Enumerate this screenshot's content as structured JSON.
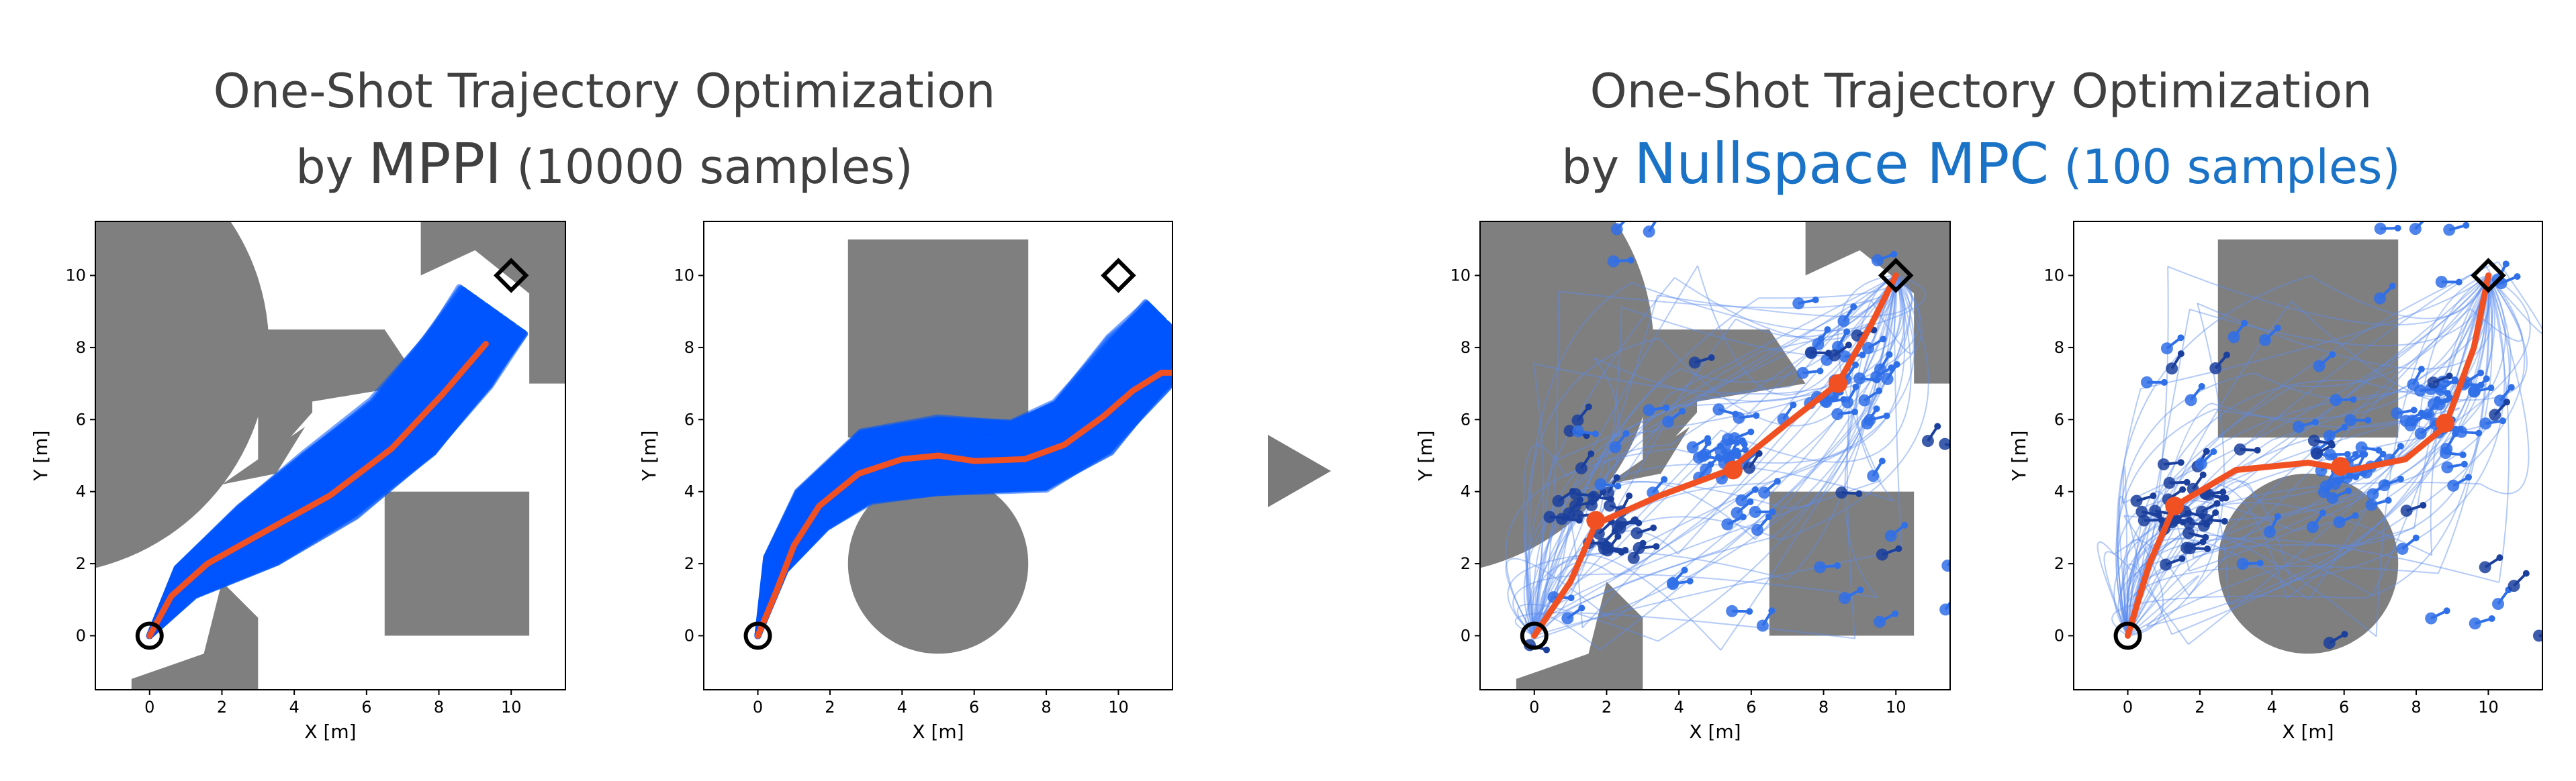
{
  "titles": {
    "left": {
      "line1": "One-Shot Trajectory Optimization",
      "prefix": "by ",
      "method": "MPPI",
      "samples": " (10000 samples)"
    },
    "right": {
      "line1": "One-Shot Trajectory Optimization",
      "prefix": "by ",
      "method": "Nullspace MPC",
      "samples": " (100 samples)"
    }
  },
  "colors": {
    "obstacle": "#7f7f7f",
    "samples": "#0055ff",
    "optimal": "#f05022",
    "nullspace": "#1a73c7",
    "arrow": "#7a7a7a"
  },
  "chart_data": [
    {
      "type": "line",
      "name": "mppi-scene-1",
      "xlabel": "X [m]",
      "ylabel": "Y [m]",
      "xlim": [
        -1.5,
        11.5
      ],
      "ylim": [
        -1.5,
        11.5
      ],
      "xticks": [
        0,
        2,
        4,
        6,
        8,
        10
      ],
      "yticks": [
        0,
        2,
        4,
        6,
        8,
        10
      ],
      "start": [
        0,
        0
      ],
      "goal": [
        10,
        10
      ],
      "obstacles": [
        {
          "kind": "circle",
          "cx": -3,
          "cy": 8,
          "r": 6.3
        },
        {
          "kind": "polygon",
          "points": [
            [
              3,
              8.5
            ],
            [
              6.5,
              8.5
            ],
            [
              7.5,
              7
            ],
            [
              4.5,
              6.5
            ],
            [
              4.5,
              6.2
            ],
            [
              3,
              4.5
            ]
          ]
        },
        {
          "kind": "polygon",
          "points": [
            [
              3.5,
              4.5
            ],
            [
              4.3,
              5.8
            ],
            [
              2,
              4.2
            ]
          ]
        },
        {
          "kind": "rect",
          "x0": 6.5,
          "y0": 0,
          "x1": 10.5,
          "y1": 4
        },
        {
          "kind": "polygon",
          "points": [
            [
              -0.5,
              -1.2
            ],
            [
              1.5,
              -0.5
            ],
            [
              2,
              1.5
            ],
            [
              3,
              0.5
            ],
            [
              3,
              -1.5
            ],
            [
              -0.5,
              -1.5
            ]
          ]
        },
        {
          "kind": "polygon",
          "points": [
            [
              7.5,
              11.5
            ],
            [
              11.5,
              11.5
            ],
            [
              11.5,
              7
            ],
            [
              10.5,
              7
            ],
            [
              10.5,
              9.5
            ],
            [
              9,
              10.7
            ],
            [
              7.5,
              10
            ]
          ]
        }
      ],
      "samples": {
        "count": 10000,
        "band": [
          [
            0,
            0
          ],
          [
            1,
            1.5
          ],
          [
            3,
            2.8
          ],
          [
            5,
            4.2
          ],
          [
            7,
            5.8
          ],
          [
            8.5,
            7.6
          ],
          [
            9.5,
            9
          ]
        ],
        "width": 1.4
      },
      "optimal_path": [
        [
          0,
          0
        ],
        [
          0.6,
          1.1
        ],
        [
          1.6,
          2.0
        ],
        [
          3.2,
          2.9
        ],
        [
          5,
          3.9
        ],
        [
          6.7,
          5.2
        ],
        [
          8.1,
          6.7
        ],
        [
          9.3,
          8.1
        ]
      ]
    },
    {
      "type": "line",
      "name": "mppi-scene-2",
      "xlabel": "X [m]",
      "ylabel": "Y [m]",
      "xlim": [
        -1.5,
        11.5
      ],
      "ylim": [
        -1.5,
        11.5
      ],
      "xticks": [
        0,
        2,
        4,
        6,
        8,
        10
      ],
      "yticks": [
        0,
        2,
        4,
        6,
        8,
        10
      ],
      "start": [
        0,
        0
      ],
      "goal": [
        10,
        10
      ],
      "obstacles": [
        {
          "kind": "rect",
          "x0": 2.5,
          "y0": 5.5,
          "x1": 7.5,
          "y1": 11
        },
        {
          "kind": "circle",
          "cx": 5,
          "cy": 2,
          "r": 2.5
        }
      ],
      "samples": {
        "count": 10000,
        "band": [
          [
            0,
            0
          ],
          [
            0.5,
            2
          ],
          [
            1.5,
            3.5
          ],
          [
            3,
            4.7
          ],
          [
            5,
            5
          ],
          [
            7.5,
            5
          ],
          [
            9,
            5.8
          ],
          [
            10.5,
            7.5
          ],
          [
            11.5,
            8.5
          ]
        ],
        "width": 1.3
      },
      "optimal_path": [
        [
          0,
          0
        ],
        [
          0.5,
          1.2
        ],
        [
          1,
          2.5
        ],
        [
          1.7,
          3.6
        ],
        [
          2.8,
          4.5
        ],
        [
          4,
          4.9
        ],
        [
          5,
          5.0
        ],
        [
          6,
          4.85
        ],
        [
          7.4,
          4.9
        ],
        [
          8.5,
          5.3
        ],
        [
          9.6,
          6.1
        ],
        [
          10.4,
          6.8
        ],
        [
          11.2,
          7.3
        ],
        [
          11.5,
          7.3
        ]
      ]
    },
    {
      "type": "line",
      "name": "nullspace-scene-1",
      "xlabel": "X [m]",
      "ylabel": "Y [m]",
      "xlim": [
        -1.5,
        11.5
      ],
      "ylim": [
        -1.5,
        11.5
      ],
      "xticks": [
        0,
        2,
        4,
        6,
        8,
        10
      ],
      "yticks": [
        0,
        2,
        4,
        6,
        8,
        10
      ],
      "start": [
        0,
        0
      ],
      "goal": [
        10,
        10
      ],
      "obstacles": [
        {
          "kind": "circle",
          "cx": -3,
          "cy": 8,
          "r": 6.3
        },
        {
          "kind": "polygon",
          "points": [
            [
              3,
              8.5
            ],
            [
              6.5,
              8.5
            ],
            [
              7.5,
              7
            ],
            [
              4.5,
              6.5
            ],
            [
              4.5,
              6.2
            ],
            [
              3,
              4.5
            ]
          ]
        },
        {
          "kind": "polygon",
          "points": [
            [
              3.5,
              4.5
            ],
            [
              4.3,
              5.8
            ],
            [
              2,
              4.2
            ]
          ]
        },
        {
          "kind": "rect",
          "x0": 6.5,
          "y0": 0,
          "x1": 10.5,
          "y1": 4
        },
        {
          "kind": "polygon",
          "points": [
            [
              -0.5,
              -1.2
            ],
            [
              1.5,
              -0.5
            ],
            [
              2,
              1.5
            ],
            [
              3,
              0.5
            ],
            [
              3,
              -1.5
            ],
            [
              -0.5,
              -1.5
            ]
          ]
        },
        {
          "kind": "polygon",
          "points": [
            [
              7.5,
              11.5
            ],
            [
              11.5,
              11.5
            ],
            [
              11.5,
              7
            ],
            [
              10.5,
              7
            ],
            [
              10.5,
              9.5
            ],
            [
              9,
              10.7
            ],
            [
              7.5,
              10
            ]
          ]
        }
      ],
      "samples": {
        "count": 100
      },
      "optimal_path": [
        [
          0,
          0
        ],
        [
          1,
          1.5
        ],
        [
          1.7,
          3.1
        ],
        [
          3.5,
          3.9
        ],
        [
          5.4,
          4.6
        ],
        [
          7,
          5.9
        ],
        [
          8.4,
          7
        ],
        [
          9.3,
          8.6
        ],
        [
          10,
          10
        ]
      ],
      "waypoints": [
        [
          1.7,
          3.2
        ],
        [
          5.5,
          4.6
        ],
        [
          8.4,
          7.0
        ]
      ]
    },
    {
      "type": "line",
      "name": "nullspace-scene-2",
      "xlabel": "X [m]",
      "ylabel": "Y [m]",
      "xlim": [
        -1.5,
        11.5
      ],
      "ylim": [
        -1.5,
        11.5
      ],
      "xticks": [
        0,
        2,
        4,
        6,
        8,
        10
      ],
      "yticks": [
        0,
        2,
        4,
        6,
        8,
        10
      ],
      "start": [
        0,
        0
      ],
      "goal": [
        10,
        10
      ],
      "obstacles": [
        {
          "kind": "rect",
          "x0": 2.5,
          "y0": 5.5,
          "x1": 7.5,
          "y1": 11
        },
        {
          "kind": "circle",
          "cx": 5,
          "cy": 2,
          "r": 2.5
        }
      ],
      "samples": {
        "count": 100
      },
      "optimal_path": [
        [
          0,
          0
        ],
        [
          0.6,
          2
        ],
        [
          1.3,
          3.6
        ],
        [
          3,
          4.6
        ],
        [
          5,
          4.8
        ],
        [
          6.2,
          4.6
        ],
        [
          7.7,
          4.9
        ],
        [
          8.8,
          5.8
        ],
        [
          9.6,
          8
        ],
        [
          10,
          10
        ]
      ],
      "waypoints": [
        [
          1.3,
          3.6
        ],
        [
          5.9,
          4.7
        ],
        [
          8.8,
          5.9
        ]
      ]
    }
  ]
}
